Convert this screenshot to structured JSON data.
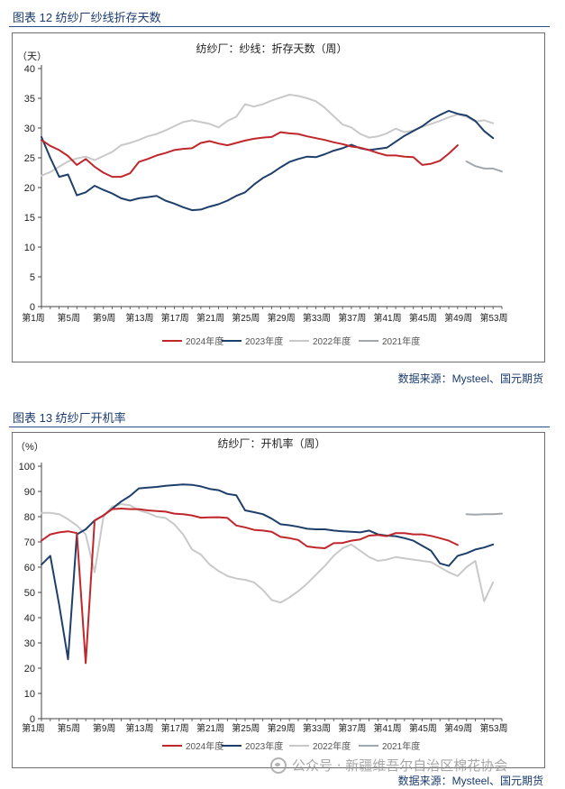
{
  "figures": [
    {
      "caption": "图表 12  纺纱厂纱线折存天数",
      "source": "数据来源：Mysteel、国元期货"
    },
    {
      "caption": "图表 13  纺纱厂开机率",
      "source": "数据来源：Mysteel、国元期货"
    }
  ],
  "watermark": "公众号 · 新疆维吾尔自治区棉花协会",
  "colors": {
    "2024": "#c0272d",
    "2023": "#1f3f6b",
    "2022": "#c9c9c9",
    "2021": "#a0a7ad"
  },
  "chart_data": [
    {
      "type": "line",
      "title": "纺纱厂：纱线：折存天数（周）",
      "ylabel": "（天）",
      "ylim": [
        0,
        40
      ],
      "yticks": [
        0,
        5,
        10,
        15,
        20,
        25,
        30,
        35,
        40
      ],
      "x_ticks": [
        "第1周",
        "第5周",
        "第9周",
        "第13周",
        "第17周",
        "第21周",
        "第25周",
        "第29周",
        "第33周",
        "第37周",
        "第41周",
        "第45周",
        "第49周",
        "第53周"
      ],
      "x_tick_weeks": [
        1,
        5,
        9,
        13,
        17,
        21,
        25,
        29,
        33,
        37,
        41,
        45,
        49,
        53
      ],
      "xlim": [
        1,
        53
      ],
      "legend_position": "bottom",
      "series": [
        {
          "name": "2024年度",
          "color": "#c0272d",
          "x": [
            1,
            2,
            3,
            4,
            5,
            6,
            7,
            8,
            9,
            10,
            11,
            12,
            13,
            14,
            15,
            16,
            17,
            18,
            19,
            20,
            21,
            22,
            23,
            24,
            25,
            26,
            27,
            28,
            29,
            30,
            31,
            32,
            33,
            34,
            35,
            36,
            37,
            38,
            39,
            40,
            41,
            42,
            43,
            44,
            45,
            46,
            47,
            48
          ],
          "values": [
            28.0,
            27.0,
            26.3,
            25.3,
            23.8,
            24.8,
            23.5,
            22.5,
            21.8,
            21.8,
            22.4,
            24.3,
            24.8,
            25.4,
            25.8,
            26.3,
            26.5,
            26.6,
            27.5,
            27.8,
            27.4,
            27.1,
            27.5,
            27.9,
            28.2,
            28.4,
            28.5,
            29.3,
            29.1,
            29.0,
            28.6,
            28.3,
            28.0,
            27.6,
            27.3,
            26.9,
            26.7,
            26.3,
            25.8,
            25.4,
            25.4,
            25.2,
            25.1,
            23.8,
            24.0,
            24.5,
            25.7,
            27.1
          ]
        },
        {
          "name": "2023年度",
          "color": "#1f3f6b",
          "x": [
            1,
            2,
            3,
            4,
            5,
            6,
            7,
            8,
            9,
            10,
            11,
            12,
            13,
            14,
            15,
            16,
            17,
            18,
            19,
            20,
            21,
            22,
            23,
            24,
            25,
            26,
            27,
            28,
            29,
            30,
            31,
            32,
            33,
            34,
            35,
            36,
            37,
            38,
            39,
            40,
            41,
            42,
            43,
            44,
            45,
            46,
            47,
            48,
            49,
            50,
            51,
            52
          ],
          "values": [
            28.5,
            25.0,
            21.8,
            22.2,
            18.7,
            19.2,
            20.3,
            19.6,
            19.0,
            18.2,
            17.8,
            18.2,
            18.4,
            18.6,
            17.8,
            17.3,
            16.7,
            16.2,
            16.3,
            16.8,
            17.2,
            17.8,
            18.6,
            19.2,
            20.5,
            21.6,
            22.4,
            23.4,
            24.3,
            24.8,
            25.2,
            25.1,
            25.6,
            26.2,
            26.6,
            27.2,
            26.6,
            26.3,
            26.5,
            26.7,
            27.7,
            28.7,
            29.5,
            30.3,
            31.4,
            32.2,
            32.9,
            32.4,
            32.1,
            31.2,
            29.5,
            28.3
          ]
        },
        {
          "name": "2022年度",
          "color": "#c9c9c9",
          "x": [
            1,
            2,
            3,
            4,
            5,
            6,
            7,
            8,
            9,
            10,
            11,
            12,
            13,
            14,
            15,
            16,
            17,
            18,
            19,
            20,
            21,
            22,
            23,
            24,
            25,
            26,
            27,
            28,
            29,
            30,
            31,
            32,
            33,
            34,
            35,
            36,
            37,
            38,
            39,
            40,
            41,
            42,
            43,
            44,
            45,
            46,
            47,
            48,
            49,
            50,
            51,
            52
          ],
          "values": [
            22.0,
            22.6,
            23.5,
            24.4,
            24.9,
            25.2,
            24.6,
            25.3,
            26.0,
            27.1,
            27.5,
            28.0,
            28.6,
            29.0,
            29.6,
            30.3,
            31.0,
            31.3,
            31.0,
            30.7,
            30.1,
            31.2,
            31.9,
            34.0,
            33.6,
            34.0,
            34.6,
            35.1,
            35.6,
            35.4,
            35.0,
            34.5,
            33.4,
            32.0,
            30.6,
            30.1,
            29.0,
            28.4,
            28.6,
            29.1,
            29.9,
            29.3,
            29.6,
            30.2,
            30.7,
            31.2,
            31.8,
            32.3,
            31.9,
            31.1,
            31.3,
            30.8
          ]
        },
        {
          "name": "2021年度",
          "color": "#a0a7ad",
          "x": [
            1,
            2,
            3,
            4,
            5,
            6,
            7,
            8,
            9,
            10,
            11,
            12,
            13,
            14,
            15,
            16,
            17,
            18,
            19,
            20,
            21,
            22,
            23,
            24,
            25,
            26,
            27,
            28,
            29,
            30,
            31,
            32,
            33,
            34,
            35,
            36,
            37,
            38,
            39,
            40,
            41,
            42,
            43,
            44,
            45,
            46,
            47,
            48,
            49,
            50,
            51,
            52,
            53
          ],
          "values": [
            null,
            null,
            null,
            null,
            null,
            null,
            null,
            null,
            null,
            null,
            null,
            null,
            null,
            null,
            null,
            null,
            null,
            null,
            null,
            null,
            null,
            null,
            null,
            null,
            null,
            null,
            null,
            null,
            null,
            null,
            null,
            null,
            null,
            null,
            null,
            null,
            null,
            null,
            null,
            null,
            null,
            null,
            null,
            null,
            null,
            null,
            null,
            null,
            24.4,
            23.6,
            23.2,
            23.2,
            22.7
          ]
        }
      ]
    },
    {
      "type": "line",
      "title": "纺纱厂：开机率（周）",
      "ylabel": "（%）",
      "ylim": [
        0,
        100
      ],
      "yticks": [
        0,
        10,
        20,
        30,
        40,
        50,
        60,
        70,
        80,
        90,
        100
      ],
      "x_ticks": [
        "第1周",
        "第5周",
        "第9周",
        "第13周",
        "第17周",
        "第21周",
        "第25周",
        "第29周",
        "第33周",
        "第37周",
        "第41周",
        "第45周",
        "第49周",
        "第53周"
      ],
      "x_tick_weeks": [
        1,
        5,
        9,
        13,
        17,
        21,
        25,
        29,
        33,
        37,
        41,
        45,
        49,
        53
      ],
      "xlim": [
        1,
        53
      ],
      "legend_position": "bottom",
      "series": [
        {
          "name": "2024年度",
          "color": "#c0272d",
          "x": [
            1,
            2,
            3,
            4,
            5,
            6,
            7,
            8,
            9,
            10,
            11,
            12,
            13,
            14,
            15,
            16,
            17,
            18,
            19,
            20,
            21,
            22,
            23,
            24,
            25,
            26,
            27,
            28,
            29,
            30,
            31,
            32,
            33,
            34,
            35,
            36,
            37,
            38,
            39,
            40,
            41,
            42,
            43,
            44,
            45,
            46,
            47,
            48
          ],
          "values": [
            70.5,
            73.0,
            73.8,
            74.2,
            73.5,
            22.0,
            78.5,
            80.5,
            83.0,
            83.2,
            83.0,
            83.0,
            82.5,
            82.2,
            82.0,
            81.2,
            81.0,
            80.5,
            79.6,
            79.7,
            79.8,
            79.5,
            76.5,
            75.8,
            74.8,
            74.5,
            74.0,
            72.0,
            71.5,
            70.8,
            68.2,
            67.8,
            67.5,
            69.5,
            69.6,
            70.5,
            71.0,
            72.5,
            72.8,
            72.3,
            73.5,
            73.5,
            73.0,
            73.0,
            72.4,
            71.5,
            70.5,
            68.8
          ]
        },
        {
          "name": "2023年度",
          "color": "#1f3f6b",
          "x": [
            1,
            2,
            3,
            4,
            5,
            6,
            7,
            8,
            9,
            10,
            11,
            12,
            13,
            14,
            15,
            16,
            17,
            18,
            19,
            20,
            21,
            22,
            23,
            24,
            25,
            26,
            27,
            28,
            29,
            30,
            31,
            32,
            33,
            34,
            35,
            36,
            37,
            38,
            39,
            40,
            41,
            42,
            43,
            44,
            45,
            46,
            47,
            48,
            49,
            50,
            51,
            52
          ],
          "values": [
            61.0,
            64.5,
            45.0,
            23.5,
            73.0,
            75.0,
            78.5,
            80.5,
            83.2,
            86.0,
            88.2,
            91.2,
            91.5,
            91.8,
            92.2,
            92.5,
            92.8,
            92.6,
            92.0,
            91.0,
            90.5,
            89.0,
            88.5,
            82.5,
            81.8,
            81.0,
            79.2,
            77.0,
            76.6,
            76.0,
            75.2,
            75.0,
            75.0,
            74.5,
            74.2,
            74.0,
            73.8,
            74.5,
            73.0,
            72.5,
            72.3,
            71.5,
            70.5,
            68.5,
            66.5,
            61.5,
            60.5,
            64.5,
            65.5,
            67.0,
            67.8,
            69.0
          ]
        },
        {
          "name": "2022年度",
          "color": "#c9c9c9",
          "x": [
            1,
            2,
            3,
            4,
            5,
            6,
            7,
            8,
            9,
            10,
            11,
            12,
            13,
            14,
            15,
            16,
            17,
            18,
            19,
            20,
            21,
            22,
            23,
            24,
            25,
            26,
            27,
            28,
            29,
            30,
            31,
            32,
            33,
            34,
            35,
            36,
            37,
            38,
            39,
            40,
            41,
            42,
            43,
            44,
            45,
            46,
            47,
            48,
            49,
            50,
            51,
            52
          ],
          "values": [
            81.5,
            81.5,
            81.0,
            79.0,
            76.5,
            73.0,
            58.0,
            80.0,
            84.0,
            85.0,
            84.5,
            82.5,
            81.5,
            80.0,
            79.5,
            77.0,
            73.0,
            67.0,
            65.0,
            61.0,
            58.5,
            56.5,
            55.5,
            55.0,
            54.0,
            51.0,
            47.0,
            46.0,
            48.0,
            50.5,
            53.5,
            57.0,
            60.5,
            64.5,
            67.5,
            69.0,
            66.5,
            64.0,
            62.5,
            63.0,
            64.0,
            63.5,
            63.0,
            62.5,
            62.0,
            60.0,
            58.0,
            56.5,
            60.0,
            62.5,
            46.5,
            54.0
          ]
        },
        {
          "name": "2021年度",
          "color": "#a0a7ad",
          "x": [
            1,
            2,
            3,
            4,
            5,
            6,
            7,
            8,
            9,
            10,
            11,
            12,
            13,
            14,
            15,
            16,
            17,
            18,
            19,
            20,
            21,
            22,
            23,
            24,
            25,
            26,
            27,
            28,
            29,
            30,
            31,
            32,
            33,
            34,
            35,
            36,
            37,
            38,
            39,
            40,
            41,
            42,
            43,
            44,
            45,
            46,
            47,
            48,
            49,
            50,
            51,
            52,
            53
          ],
          "values": [
            null,
            null,
            null,
            null,
            null,
            null,
            null,
            null,
            null,
            null,
            null,
            null,
            null,
            null,
            null,
            null,
            null,
            null,
            null,
            null,
            null,
            null,
            null,
            null,
            null,
            null,
            null,
            null,
            null,
            null,
            null,
            null,
            null,
            null,
            null,
            null,
            null,
            null,
            null,
            null,
            null,
            null,
            null,
            null,
            null,
            null,
            null,
            null,
            81.0,
            80.8,
            81.0,
            81.0,
            81.2
          ]
        }
      ]
    }
  ]
}
